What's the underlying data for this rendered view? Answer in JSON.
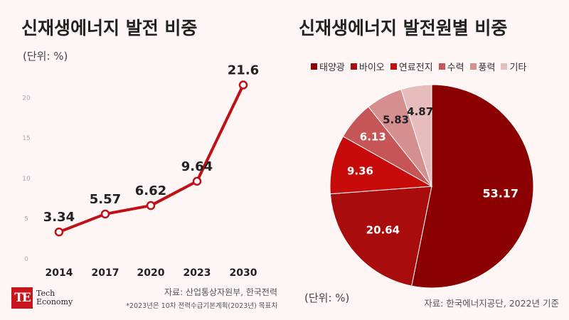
{
  "left_chart": {
    "title": "신재생에너지 발전 비중",
    "unit": "(단위: %)",
    "source": "자료: 산업통상자원부, 한국전력",
    "note": "*2023년은 10차 전력수급기본계획(2023년) 목표치"
  },
  "right_chart": {
    "title": "신재생에너지 발전원별 비중",
    "unit": "(단위: %)",
    "source": "자료: 한국에너지공단, 2022년 기준"
  },
  "logo": {
    "mark": "TE",
    "line1": "Tech",
    "line2": "Economy"
  },
  "colors": {
    "line": "#c00f17",
    "slices": [
      "#8b0000",
      "#a90c0c",
      "#c70a0a",
      "#c65555",
      "#d68f8f",
      "#e6bcbc"
    ]
  },
  "chart_data": [
    {
      "type": "line",
      "title": "신재생에너지 발전 비중",
      "categories": [
        "2014",
        "2017",
        "2020",
        "2023",
        "2030"
      ],
      "values": [
        3.34,
        5.57,
        6.62,
        9.64,
        21.6
      ],
      "value_labels": [
        "3.34",
        "5.57",
        "6.62",
        "9.64",
        "21.6"
      ],
      "y_ticks": [
        "0",
        "5",
        "10",
        "15",
        "20"
      ],
      "ylim": [
        0,
        25
      ],
      "grid": false
    },
    {
      "type": "pie",
      "title": "신재생에너지 발전원별 비중",
      "labels": [
        "태양광",
        "바이오",
        "연료전지",
        "수력",
        "풍력",
        "기타"
      ],
      "values": [
        53.17,
        20.64,
        9.36,
        6.13,
        5.83,
        4.87
      ],
      "value_labels": [
        "53.17",
        "20.64",
        "9.36",
        "6.13",
        "5.83",
        "4.87"
      ],
      "legend_position": "top"
    }
  ]
}
